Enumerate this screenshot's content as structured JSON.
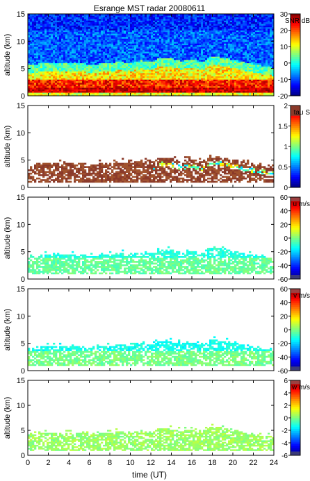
{
  "chart_data": {
    "type": "heatmap",
    "title": "Esrange MST radar 20080611",
    "xlabel": "time (UT)",
    "xlim": [
      0,
      24
    ],
    "xticks": [
      0,
      2,
      4,
      6,
      8,
      10,
      12,
      14,
      16,
      18,
      20,
      22,
      24
    ],
    "ylabel": "altitude (km)",
    "ylim": [
      0,
      15
    ],
    "yticks": [
      0,
      5,
      10,
      15
    ],
    "grid": false,
    "colormap": "jet",
    "panels": [
      {
        "id": "snr",
        "colorbar_label": "SNR dB",
        "clim": [
          -20,
          30
        ],
        "cticks": [
          -20,
          -10,
          0,
          10,
          20,
          30
        ],
        "description_of_field": "full coverage; strong returns (red) near 1-3 km, yellow/green 2-5 km with wavy layer rising from ~3 km to ~6 km after 12 UT, blue above"
      },
      {
        "id": "tau",
        "colorbar_label": "tau S",
        "clim": [
          0,
          2
        ],
        "cticks": [
          0,
          0.5,
          1,
          1.5,
          2
        ],
        "description_of_field": "data only where echo exists, ~1-6 km; mostly dark red (~2 s), with cyan/yellow streaks along a tilted layer at 12-24 UT"
      },
      {
        "id": "u",
        "colorbar_label": "u m/s",
        "clim": [
          -60,
          60
        ],
        "cticks": [
          -60,
          -40,
          -20,
          0,
          20,
          40,
          60
        ],
        "description_of_field": "values near 0 to -10 m/s (cyan/light green) between ~1 and ~6 km"
      },
      {
        "id": "v",
        "colorbar_label": "v m/s",
        "clim": [
          -60,
          60
        ],
        "cticks": [
          -60,
          -40,
          -20,
          0,
          20,
          40,
          60
        ],
        "description_of_field": "values near 0 to -15 m/s (cyan/light green) between ~1 and ~6 km"
      },
      {
        "id": "w",
        "colorbar_label": "w m/s",
        "clim": [
          -6,
          6
        ],
        "cticks": [
          -6,
          -4,
          -2,
          0,
          2,
          4,
          6
        ],
        "description_of_field": "values near 0 m/s (light green) between ~1 and ~6 km"
      }
    ],
    "layer_top_km": [
      [
        0,
        4.2
      ],
      [
        2,
        4.5
      ],
      [
        4,
        4.6
      ],
      [
        6,
        4.3
      ],
      [
        8,
        4.4
      ],
      [
        9,
        4.8
      ],
      [
        10,
        4.4
      ],
      [
        11,
        5.0
      ],
      [
        12,
        4.7
      ],
      [
        13,
        5.5
      ],
      [
        14,
        5.4
      ],
      [
        15,
        4.9
      ],
      [
        16,
        5.2
      ],
      [
        17,
        4.7
      ],
      [
        18,
        5.8
      ],
      [
        19,
        5.4
      ],
      [
        20,
        5.2
      ],
      [
        21,
        4.7
      ],
      [
        22,
        4.3
      ],
      [
        23,
        4.0
      ],
      [
        24,
        3.7
      ]
    ],
    "layer_base_km": 0.8
  }
}
